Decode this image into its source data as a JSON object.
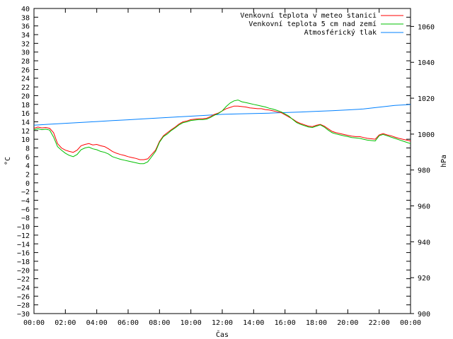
{
  "chart_data": {
    "type": "line",
    "xlabel": "Čas",
    "ylabel_left": "°C",
    "ylabel_right": "hPa",
    "x_ticks": [
      "00:00",
      "02:00",
      "04:00",
      "06:00",
      "08:00",
      "10:00",
      "12:00",
      "14:00",
      "16:00",
      "18:00",
      "20:00",
      "22:00",
      "00:00"
    ],
    "x_range_hours": [
      0,
      24
    ],
    "y_left_range": [
      -30,
      40
    ],
    "y_left_ticks": [
      -30,
      -28,
      -26,
      -24,
      -22,
      -20,
      -18,
      -16,
      -14,
      -12,
      -10,
      -8,
      -6,
      -4,
      -2,
      0,
      2,
      4,
      6,
      8,
      10,
      12,
      14,
      16,
      18,
      20,
      22,
      24,
      26,
      28,
      30,
      32,
      34,
      36,
      38,
      40
    ],
    "y_right_range": [
      900,
      1070
    ],
    "y_right_ticks": [
      900,
      920,
      940,
      960,
      980,
      1000,
      1020,
      1040,
      1060
    ],
    "grid": false,
    "legend_position": "top-right",
    "series": [
      {
        "name": "Venkovní teplota v meteo stanici",
        "color": "#ff0000",
        "axis": "left",
        "x": [
          0,
          0.25,
          0.5,
          0.75,
          1,
          1.25,
          1.5,
          1.75,
          2,
          2.25,
          2.5,
          2.75,
          3,
          3.25,
          3.5,
          3.75,
          4,
          4.25,
          4.5,
          4.75,
          5,
          5.25,
          5.5,
          5.75,
          6,
          6.25,
          6.5,
          6.75,
          7,
          7.25,
          7.5,
          7.75,
          8,
          8.25,
          8.5,
          8.75,
          9,
          9.25,
          9.5,
          9.75,
          10,
          10.25,
          10.5,
          10.75,
          11,
          11.25,
          11.5,
          11.75,
          12,
          12.25,
          12.5,
          12.75,
          13,
          13.25,
          13.5,
          13.75,
          14,
          14.25,
          14.5,
          14.75,
          15,
          15.25,
          15.5,
          15.75,
          16,
          16.25,
          16.5,
          16.75,
          17,
          17.25,
          17.5,
          17.75,
          18,
          18.25,
          18.5,
          18.75,
          19,
          19.25,
          19.5,
          19.75,
          20,
          20.25,
          20.5,
          20.75,
          21,
          21.25,
          21.5,
          21.75,
          22,
          22.25,
          22.5,
          22.75,
          23,
          23.25,
          23.5,
          23.75,
          24
        ],
        "values": [
          12.5,
          12.8,
          12.6,
          12.7,
          12.5,
          11.5,
          9,
          8,
          7.5,
          7.2,
          7,
          7.5,
          8.5,
          8.8,
          9,
          8.7,
          8.8,
          8.5,
          8.3,
          7.8,
          7.2,
          6.8,
          6.5,
          6.3,
          6,
          5.8,
          5.6,
          5.3,
          5.3,
          5.5,
          6.5,
          7.5,
          9.5,
          10.8,
          11.5,
          12.2,
          12.8,
          13.5,
          14,
          14.2,
          14.5,
          14.6,
          14.7,
          14.7,
          14.8,
          15.2,
          15.7,
          16,
          16.5,
          17,
          17.3,
          17.6,
          17.6,
          17.5,
          17.4,
          17.2,
          17.1,
          17,
          17,
          16.8,
          16.7,
          16.5,
          16.3,
          16.1,
          15.6,
          15.1,
          14.6,
          14,
          13.6,
          13.3,
          13,
          12.9,
          13.2,
          13.4,
          13,
          12.4,
          11.8,
          11.5,
          11.3,
          11.1,
          10.9,
          10.7,
          10.6,
          10.6,
          10.4,
          10.2,
          10.1,
          10,
          11,
          11.3,
          11,
          10.8,
          10.5,
          10.2,
          10,
          9.8,
          9.6
        ]
      },
      {
        "name": "Venkovní teplota 5 cm nad zemí",
        "color": "#00c000",
        "axis": "left",
        "x": [
          0,
          0.25,
          0.5,
          0.75,
          1,
          1.25,
          1.5,
          1.75,
          2,
          2.25,
          2.5,
          2.75,
          3,
          3.25,
          3.5,
          3.75,
          4,
          4.25,
          4.5,
          4.75,
          5,
          5.25,
          5.5,
          5.75,
          6,
          6.25,
          6.5,
          6.75,
          7,
          7.25,
          7.5,
          7.75,
          8,
          8.25,
          8.5,
          8.75,
          9,
          9.25,
          9.5,
          9.75,
          10,
          10.25,
          10.5,
          10.75,
          11,
          11.25,
          11.5,
          11.75,
          12,
          12.25,
          12.5,
          12.75,
          13,
          13.25,
          13.5,
          13.75,
          14,
          14.25,
          14.5,
          14.75,
          15,
          15.25,
          15.5,
          15.75,
          16,
          16.25,
          16.5,
          16.75,
          17,
          17.25,
          17.5,
          17.75,
          18,
          18.25,
          18.5,
          18.75,
          19,
          19.25,
          19.5,
          19.75,
          20,
          20.25,
          20.5,
          20.75,
          21,
          21.25,
          21.5,
          21.75,
          22,
          22.25,
          22.5,
          22.75,
          23,
          23.25,
          23.5,
          23.75,
          24
        ],
        "values": [
          12.2,
          12.4,
          12.2,
          12.3,
          12.1,
          10.5,
          8.3,
          7.5,
          6.8,
          6.3,
          6,
          6.5,
          7.6,
          8,
          8.2,
          7.8,
          7.6,
          7.2,
          7,
          6.6,
          6,
          5.7,
          5.4,
          5.2,
          5,
          4.8,
          4.6,
          4.4,
          4.4,
          4.8,
          6,
          7.2,
          9.3,
          10.6,
          11.2,
          12,
          12.6,
          13.3,
          13.8,
          14,
          14.3,
          14.4,
          14.5,
          14.5,
          14.6,
          15,
          15.5,
          15.9,
          16.5,
          17.5,
          18.3,
          18.8,
          19,
          18.6,
          18.4,
          18.2,
          18,
          17.8,
          17.6,
          17.4,
          17.1,
          16.9,
          16.6,
          16.3,
          15.8,
          15.3,
          14.5,
          13.8,
          13.4,
          13.1,
          12.8,
          12.7,
          13,
          13.3,
          12.8,
          12.1,
          11.5,
          11.2,
          11,
          10.8,
          10.6,
          10.4,
          10.3,
          10.2,
          10,
          9.8,
          9.7,
          9.6,
          10.8,
          11.1,
          10.8,
          10.5,
          10.2,
          9.9,
          9.6,
          9.3,
          9
        ]
      },
      {
        "name": "Atmosférický tlak",
        "color": "#0080ff",
        "axis": "right",
        "x": [
          0,
          1,
          2,
          3,
          4,
          5,
          6,
          7,
          8,
          9,
          10,
          11,
          12,
          13,
          14,
          15,
          16,
          17,
          18,
          19,
          20,
          21,
          22,
          23,
          24
        ],
        "values": [
          1005,
          1005.5,
          1006,
          1006.5,
          1007,
          1007.5,
          1008,
          1008.5,
          1009,
          1009.5,
          1010,
          1010.5,
          1011,
          1011.3,
          1011.5,
          1011.7,
          1012,
          1012.3,
          1012.7,
          1013,
          1013.5,
          1014,
          1015,
          1016,
          1016.5
        ]
      }
    ]
  }
}
